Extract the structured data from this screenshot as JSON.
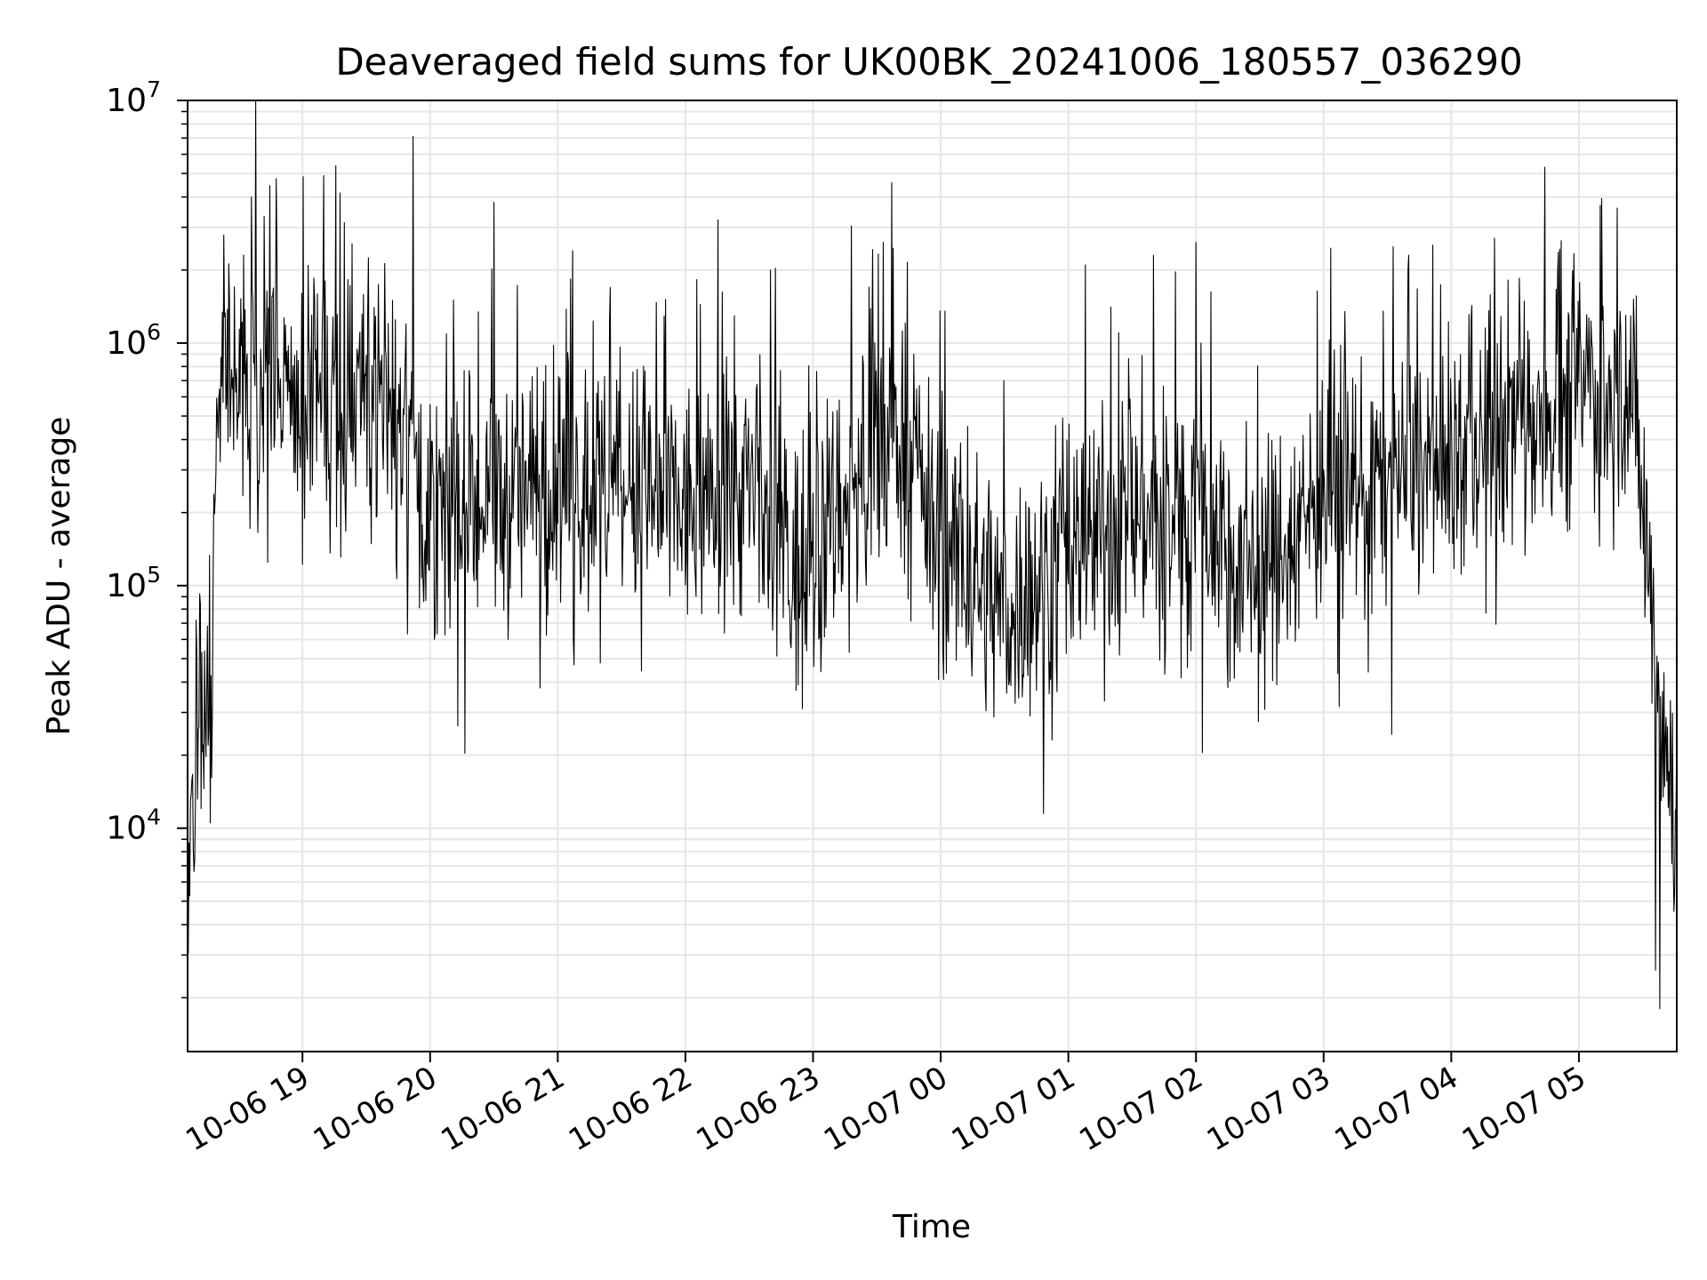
{
  "chart_data": {
    "type": "line",
    "title": "Deaveraged field sums for UK00BK_20241006_180557_036290",
    "xlabel": "Time",
    "ylabel": "Peak ADU - average",
    "yscale": "log",
    "ylim": [
      1200,
      10000000
    ],
    "xlim": [
      "2024-10-06 18:06",
      "2024-10-07 05:46"
    ],
    "grid": true,
    "legend": "none",
    "colors": {
      "line": "#000000",
      "grid": "#e6e6e6",
      "axes": "#000000"
    },
    "x_ticks": [
      {
        "t": "2024-10-06 19:00",
        "label": "10-06 19"
      },
      {
        "t": "2024-10-06 20:00",
        "label": "10-06 20"
      },
      {
        "t": "2024-10-06 21:00",
        "label": "10-06 21"
      },
      {
        "t": "2024-10-06 22:00",
        "label": "10-06 22"
      },
      {
        "t": "2024-10-06 23:00",
        "label": "10-06 23"
      },
      {
        "t": "2024-10-07 00:00",
        "label": "10-07 00"
      },
      {
        "t": "2024-10-07 01:00",
        "label": "10-07 01"
      },
      {
        "t": "2024-10-07 02:00",
        "label": "10-07 02"
      },
      {
        "t": "2024-10-07 03:00",
        "label": "10-07 03"
      },
      {
        "t": "2024-10-07 04:00",
        "label": "10-07 04"
      },
      {
        "t": "2024-10-07 05:00",
        "label": "10-07 05"
      }
    ],
    "y_ticks": [
      {
        "value": 10000,
        "base": "10",
        "exp": "4"
      },
      {
        "value": 100000,
        "base": "10",
        "exp": "5"
      },
      {
        "value": 1000000,
        "base": "10",
        "exp": "6"
      },
      {
        "value": 10000000,
        "base": "10",
        "exp": "7"
      }
    ],
    "series": [
      {
        "profile": [
          [
            "2024-10-06 18:06",
            4000
          ],
          [
            "2024-10-06 18:08",
            15000
          ],
          [
            "2024-10-06 18:12",
            25000
          ],
          [
            "2024-10-06 18:15",
            45000
          ],
          [
            "2024-10-06 18:18",
            60000
          ],
          [
            "2024-10-06 18:20",
            700000
          ],
          [
            "2024-10-06 18:40",
            650000
          ],
          [
            "2024-10-06 19:00",
            600000
          ],
          [
            "2024-10-06 19:30",
            700000
          ],
          [
            "2024-10-06 19:50",
            500000
          ],
          [
            "2024-10-06 20:00",
            180000
          ],
          [
            "2024-10-06 20:30",
            220000
          ],
          [
            "2024-10-06 21:00",
            260000
          ],
          [
            "2024-10-06 21:30",
            250000
          ],
          [
            "2024-10-06 22:00",
            200000
          ],
          [
            "2024-10-06 22:30",
            250000
          ],
          [
            "2024-10-06 22:50",
            120000
          ],
          [
            "2024-10-06 23:10",
            200000
          ],
          [
            "2024-10-06 23:40",
            450000
          ],
          [
            "2024-10-07 00:00",
            150000
          ],
          [
            "2024-10-07 00:30",
            80000
          ],
          [
            "2024-10-07 01:00",
            130000
          ],
          [
            "2024-10-07 01:30",
            200000
          ],
          [
            "2024-10-07 02:00",
            200000
          ],
          [
            "2024-10-07 02:30",
            120000
          ],
          [
            "2024-10-07 03:00",
            250000
          ],
          [
            "2024-10-07 03:30",
            280000
          ],
          [
            "2024-10-07 04:00",
            320000
          ],
          [
            "2024-10-07 04:30",
            500000
          ],
          [
            "2024-10-07 05:00",
            700000
          ],
          [
            "2024-10-07 05:25",
            600000
          ],
          [
            "2024-10-07 05:32",
            150000
          ],
          [
            "2024-10-07 05:38",
            40000
          ],
          [
            "2024-10-07 05:42",
            15000
          ],
          [
            "2024-10-07 05:46",
            20000
          ]
        ],
        "peaks": [
          [
            "2024-10-06 18:36",
            4000000
          ],
          [
            "2024-10-06 19:10",
            4900000
          ],
          [
            "2024-10-06 19:52",
            7100000
          ],
          [
            "2024-10-06 20:30",
            3800000
          ],
          [
            "2024-10-06 21:07",
            2400000
          ],
          [
            "2024-10-06 22:40",
            2000000
          ],
          [
            "2024-10-06 23:33",
            2600000
          ],
          [
            "2024-10-07 01:08",
            2100000
          ],
          [
            "2024-10-07 01:40",
            2300000
          ],
          [
            "2024-10-07 02:00",
            2600000
          ],
          [
            "2024-10-07 03:40",
            2300000
          ],
          [
            "2024-10-07 04:44",
            5300000
          ],
          [
            "2024-10-07 05:18",
            3600000
          ]
        ],
        "troughs": [
          [
            "2024-10-06 20:02",
            60000
          ],
          [
            "2024-10-06 21:20",
            48000
          ],
          [
            "2024-10-06 22:52",
            37000
          ],
          [
            "2024-10-07 00:31",
            36000
          ],
          [
            "2024-10-07 00:45",
            37000
          ],
          [
            "2024-10-07 02:15",
            38000
          ],
          [
            "2024-10-07 02:38",
            39000
          ],
          [
            "2024-10-07 03:21",
            44000
          ],
          [
            "2024-10-07 05:38",
            1800.0
          ],
          [
            "2024-10-07 05:36",
            2600
          ]
        ]
      }
    ]
  }
}
